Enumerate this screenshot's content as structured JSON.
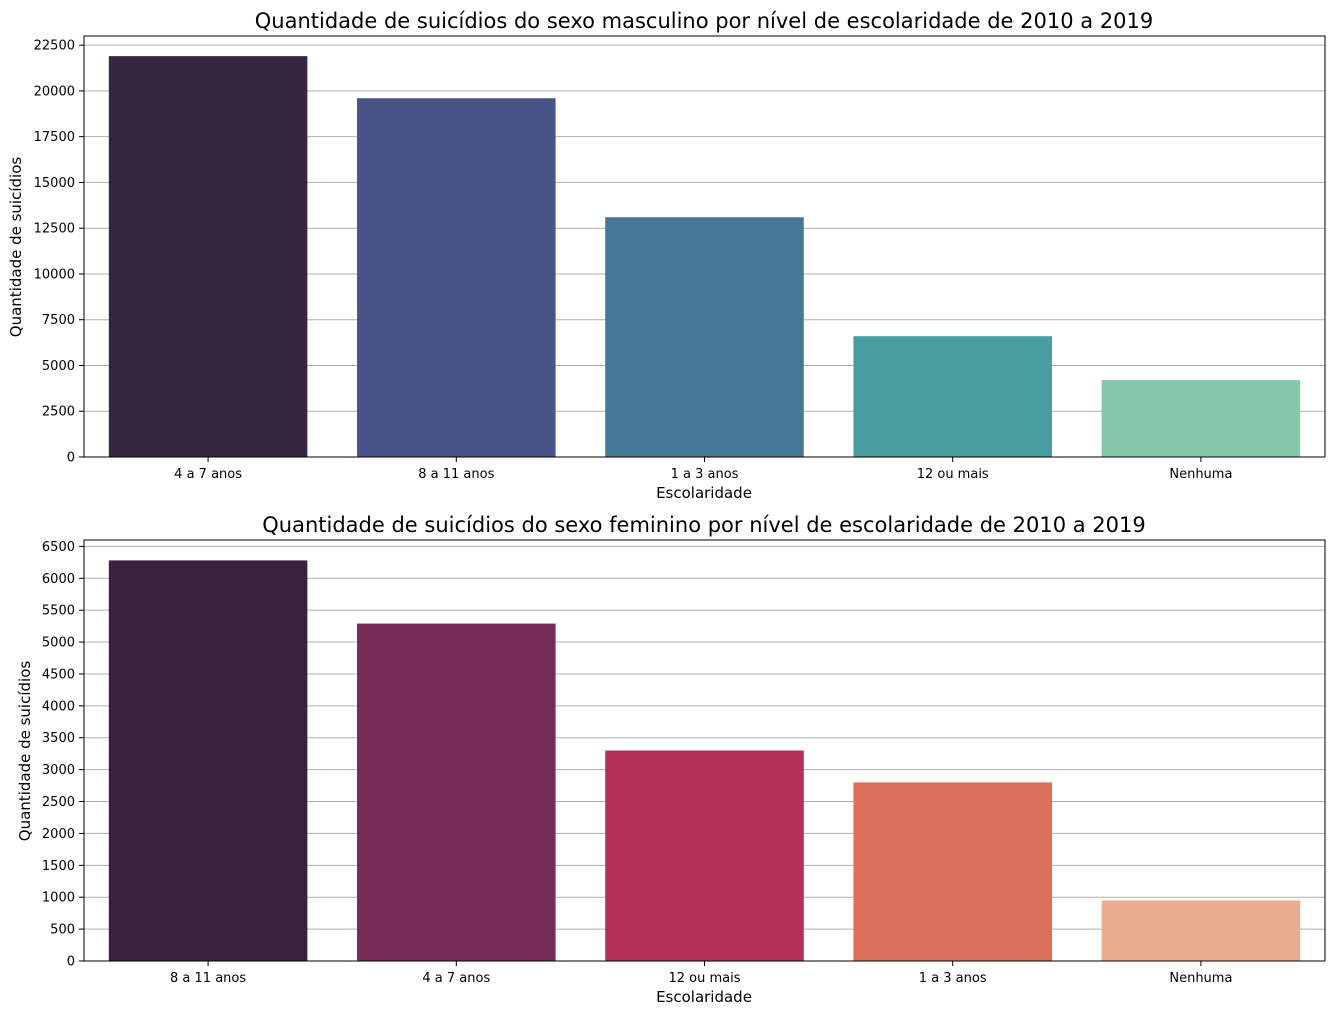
{
  "chart_data": [
    {
      "type": "bar",
      "title": "Quantidade de suicídios do sexo masculino por nível de escolaridade de 2010 a 2019",
      "xlabel": "Escolaridade",
      "ylabel": "Quantidade de suicídios",
      "categories": [
        "4 a 7 anos",
        "8 a 11 anos",
        "1 a 3 anos",
        "12 ou mais",
        "Nenhuma"
      ],
      "values": [
        21900,
        19600,
        13100,
        6600,
        4200
      ],
      "colors": [
        "#35273f",
        "#485387",
        "#447896",
        "#489e9e",
        "#85c8a9"
      ],
      "ylim": [
        0,
        23000
      ],
      "yticks": [
        0,
        2500,
        5000,
        7500,
        10000,
        12500,
        15000,
        17500,
        20000,
        22500
      ],
      "grid": "y"
    },
    {
      "type": "bar",
      "title": "Quantidade de suicídios do sexo feminino por nível de escolaridade de 2010 a 2019",
      "xlabel": "Escolaridade",
      "ylabel": "Quantidade de suicídios",
      "categories": [
        "8 a 11 anos",
        "4 a 7 anos",
        "12 ou mais",
        "1 a 3 anos",
        "Nenhuma"
      ],
      "values": [
        6280,
        5290,
        3300,
        2800,
        950
      ],
      "colors": [
        "#3a213e",
        "#762b57",
        "#b52f57",
        "#db6f5c",
        "#e9ae8f"
      ],
      "ylim": [
        0,
        6600
      ],
      "yticks": [
        0,
        500,
        1000,
        1500,
        2000,
        2500,
        3000,
        3500,
        4000,
        4500,
        5000,
        5500,
        6000,
        6500
      ],
      "grid": "y"
    }
  ]
}
